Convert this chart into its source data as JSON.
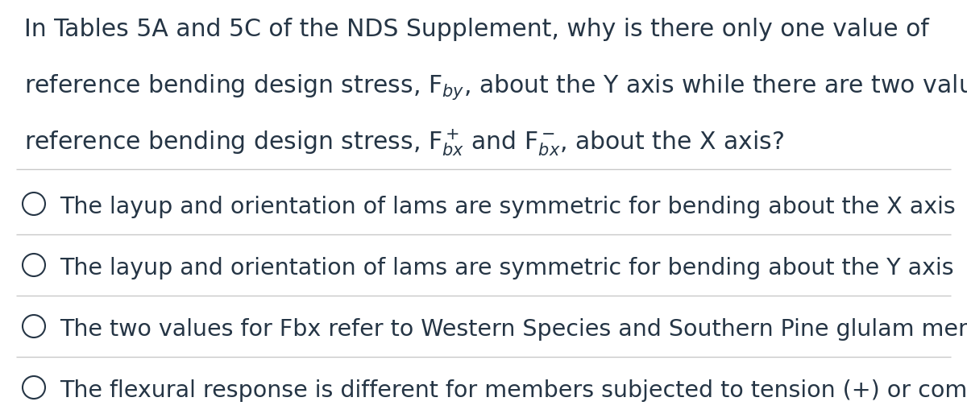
{
  "background_color": "#ffffff",
  "text_color": "#253545",
  "divider_color": "#c8c8c8",
  "question_lines": [
    "In Tables 5A and 5C of the NDS Supplement, why is there only one value of",
    "reference bending design stress, F$_{by}$, about the Y axis while there are two values for",
    "reference bending design stress, F$^+_{bx}$ and F$^-_{bx}$, about the X axis?"
  ],
  "options": [
    "The layup and orientation of lams are symmetric for bending about the X axis",
    "The layup and orientation of lams are symmetric for bending about the Y axis",
    "The two values for Fbx refer to Western Species and Southern Pine glulam members",
    "The flexural response is different for members subjected to tension (+) or compression (-)"
  ],
  "question_fontsize": 21.5,
  "option_fontsize": 20.5,
  "fig_width": 12.0,
  "fig_height": 5.14,
  "dpi": 100
}
